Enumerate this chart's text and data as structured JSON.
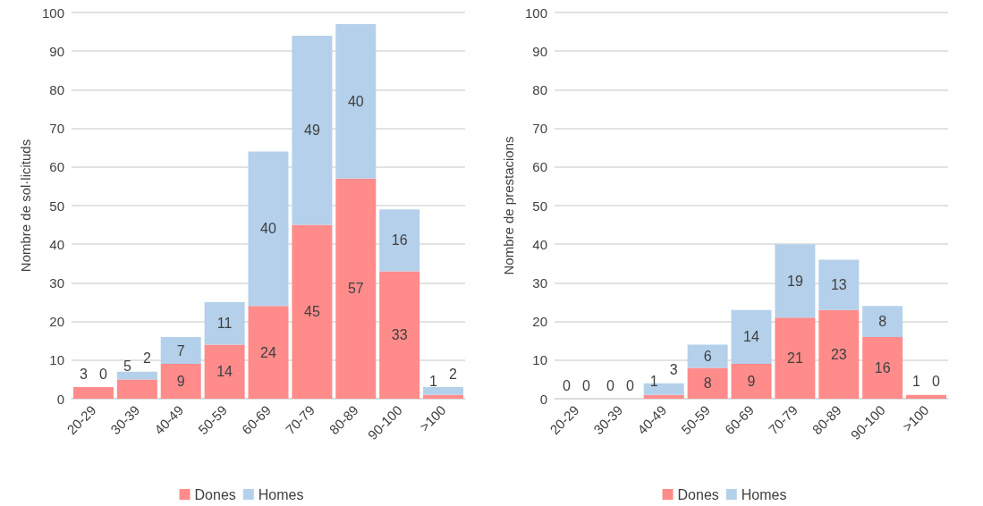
{
  "chart_data": [
    {
      "type": "bar",
      "stacked": true,
      "ylabel": "Nombre de sol·licituds",
      "categories": [
        "20-29",
        "30-39",
        "40-49",
        "50-59",
        "60-69",
        "70-79",
        "80-89",
        "90-100",
        ">100"
      ],
      "series": [
        {
          "name": "Dones",
          "color": "#ff8b8b",
          "values": [
            3,
            5,
            9,
            14,
            24,
            45,
            57,
            33,
            1
          ]
        },
        {
          "name": "Homes",
          "color": "#b4d0ea",
          "values": [
            0,
            2,
            7,
            11,
            40,
            49,
            40,
            16,
            2
          ]
        }
      ],
      "ylim": [
        0,
        100
      ],
      "yticks": [
        0,
        10,
        20,
        30,
        40,
        50,
        60,
        70,
        80,
        90,
        100
      ],
      "grid": "y",
      "legend": "bottom",
      "data_labels": true
    },
    {
      "type": "bar",
      "stacked": true,
      "ylabel": "Nombre de prestacions",
      "categories": [
        "20-29",
        "30-39",
        "40-49",
        "50-59",
        "60-69",
        "70-79",
        "80-89",
        "90-100",
        ">100"
      ],
      "series": [
        {
          "name": "Dones",
          "color": "#ff8b8b",
          "values": [
            0,
            0,
            1,
            8,
            9,
            21,
            23,
            16,
            1
          ]
        },
        {
          "name": "Homes",
          "color": "#b4d0ea",
          "values": [
            0,
            0,
            3,
            6,
            14,
            19,
            13,
            8,
            0
          ]
        }
      ],
      "ylim": [
        0,
        100
      ],
      "yticks": [
        0,
        10,
        20,
        30,
        40,
        50,
        60,
        70,
        80,
        90,
        100
      ],
      "grid": "y",
      "legend": "bottom",
      "data_labels": true
    }
  ]
}
